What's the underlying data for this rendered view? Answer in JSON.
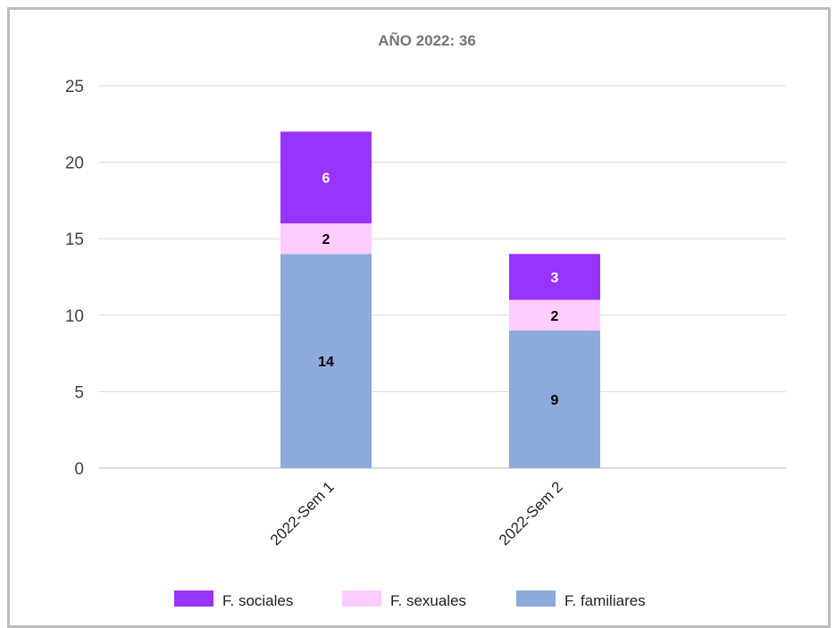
{
  "chart_data": {
    "type": "bar",
    "stacked": true,
    "title": "AÑO 2022: 36",
    "categories": [
      "2022-Sem 1",
      "2022-Sem 2"
    ],
    "series": [
      {
        "name": "F. familiares",
        "values": [
          14,
          9
        ],
        "color": "#8eaadb",
        "label_color": "#000000"
      },
      {
        "name": "F. sexuales",
        "values": [
          2,
          2
        ],
        "color": "#ffccff",
        "label_color": "#000000"
      },
      {
        "name": "F. sociales",
        "values": [
          6,
          3
        ],
        "color": "#9933ff",
        "label_color": "#ffffff"
      }
    ],
    "legend_order": [
      "F. sociales",
      "F. sexuales",
      "F. familiares"
    ],
    "ylim": [
      0,
      25
    ],
    "yticks": [
      "0",
      "5",
      "10",
      "15",
      "20",
      "25"
    ],
    "ytick_values": [
      0,
      5,
      10,
      15,
      20,
      25
    ],
    "xlabel": "",
    "ylabel": "",
    "grid": true,
    "legend_position": "bottom",
    "gridline_color": "#d9d9d9"
  }
}
